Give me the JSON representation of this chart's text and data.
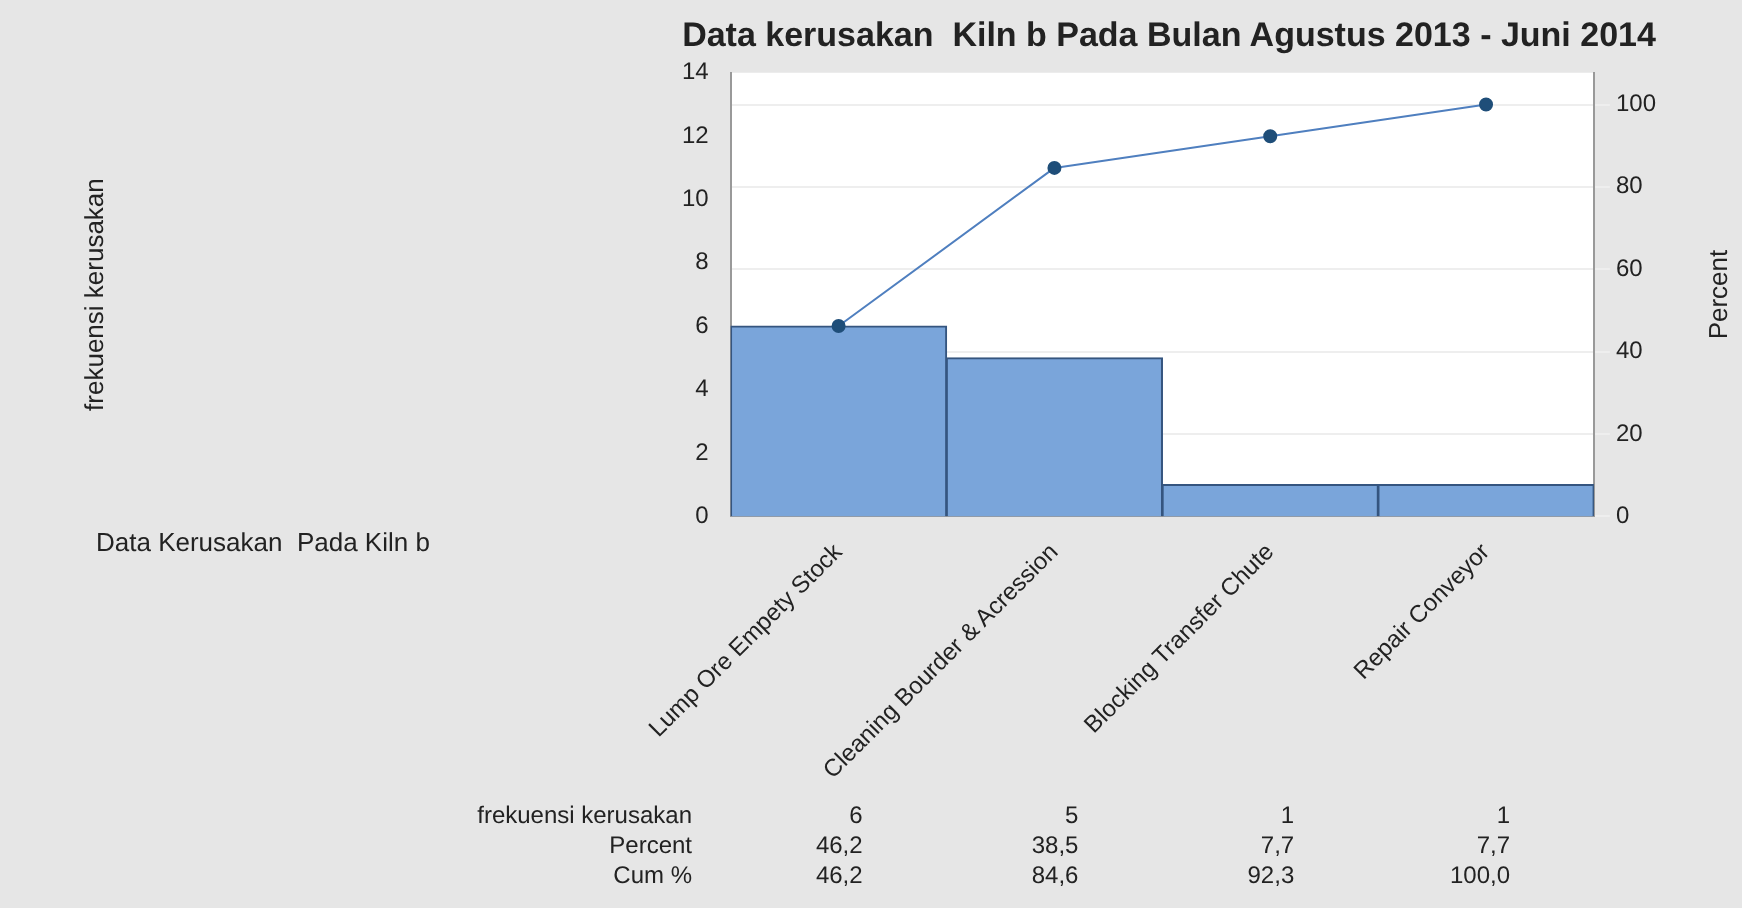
{
  "chart_data": {
    "type": "bar",
    "title": "Data kerusakan  Kiln b Pada Bulan Agustus 2013 - Juni 2014",
    "y2label": "Percent",
    "categories": [
      "Lump Ore Empety Stock",
      "Cleaning Bourder & Acression",
      "Blocking Transfer Chute",
      "Repair Conveyor"
    ],
    "series": [
      {
        "color": "#7aa5da",
        "values": [
          6,
          5,
          1,
          1
        ],
        "value_labels": [
          "6",
          "5",
          "1",
          "1"
        ]
      },
      {
        "type": "line",
        "axis": "y2",
        "color": "#4f7fbf",
        "values": [
          46.2,
          84.6,
          92.3,
          100
        ],
        "value_labels": [
          "46,2",
          "84,6",
          "92,3",
          "100,0"
        ],
        "marker": "circle"
      }
    ],
    "annotations": [
      "frekuensi kerusakan",
      "Data Kerusakan  Pada Kiln b",
      "frekuensi kerusakan",
      "Percent",
      "Cum %",
      "46,2",
      "38,5",
      "7,7",
      "7,7"
    ],
    "ylim": [
      0,
      14
    ],
    "yticks": [
      0,
      2,
      4,
      6,
      8,
      10,
      12,
      14
    ],
    "y2lim": [
      0,
      107.7
    ],
    "y2ticks": [
      0,
      20,
      40,
      60,
      80,
      100
    ],
    "grid": true,
    "legend": false
  }
}
